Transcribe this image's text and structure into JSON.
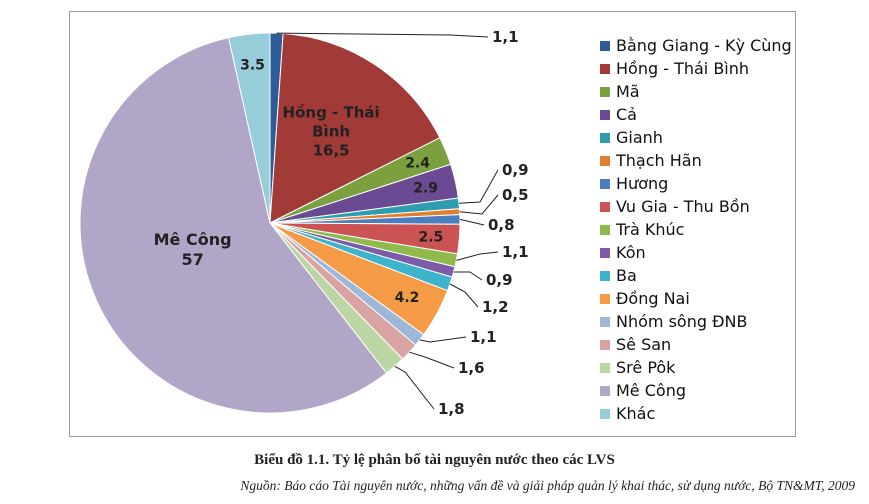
{
  "chart_data": {
    "type": "pie",
    "title": "",
    "slices": [
      {
        "name": "Bằng Giang - Kỳ Cùng",
        "value": 1.1,
        "label": "1,1",
        "color": "#2e5c99"
      },
      {
        "name": "Hồng - Thái Bình",
        "value": 16.5,
        "label": "Hồng - Thái Bình 16,5",
        "color": "#a23a38"
      },
      {
        "name": "Mã",
        "value": 2.4,
        "label": "2.4",
        "color": "#7aa13d"
      },
      {
        "name": "Cả",
        "value": 2.9,
        "label": "2.9",
        "color": "#6a4a93"
      },
      {
        "name": "Gianh",
        "value": 0.9,
        "label": "0,9",
        "color": "#2e9cb1"
      },
      {
        "name": "Thạch Hãn",
        "value": 0.5,
        "label": "0,5",
        "color": "#e07f2f"
      },
      {
        "name": "Hương",
        "value": 0.8,
        "label": "0,8",
        "color": "#4a7ebf"
      },
      {
        "name": "Vu Gia - Thu Bồn",
        "value": 2.5,
        "label": "2.5",
        "color": "#cc5353"
      },
      {
        "name": "Trà Khúc",
        "value": 1.1,
        "label": "1,1",
        "color": "#8fba4c"
      },
      {
        "name": "Kôn",
        "value": 0.9,
        "label": "0,9",
        "color": "#7c5ca8"
      },
      {
        "name": "Ba",
        "value": 1.2,
        "label": "1,2",
        "color": "#3db4cc"
      },
      {
        "name": "Đồng Nai",
        "value": 4.2,
        "label": "4.2",
        "color": "#f59a45"
      },
      {
        "name": "Nhóm sông ĐNB",
        "value": 1.1,
        "label": "1,1",
        "color": "#9eb6d8"
      },
      {
        "name": "Sê San",
        "value": 1.6,
        "label": "1,6",
        "color": "#d9a3a2"
      },
      {
        "name": "Srê Pôk",
        "value": 1.8,
        "label": "1,8",
        "color": "#bcd6a3"
      },
      {
        "name": "Mê Công",
        "value": 57,
        "label": "Mê Công 57",
        "color": "#b1a6c8"
      },
      {
        "name": "Khác",
        "value": 3.5,
        "label": "3.5",
        "color": "#97cdd9"
      }
    ],
    "legend_position": "right"
  },
  "caption": "Biểu đồ 1.1. Tỷ lệ phân bố tài nguyên nước theo các LVS",
  "source": "Nguồn: Báo cáo Tài nguyên nước, những vấn đề và giải pháp quản lý khai thác, sử dụng nước, Bộ TN&MT, 2009"
}
